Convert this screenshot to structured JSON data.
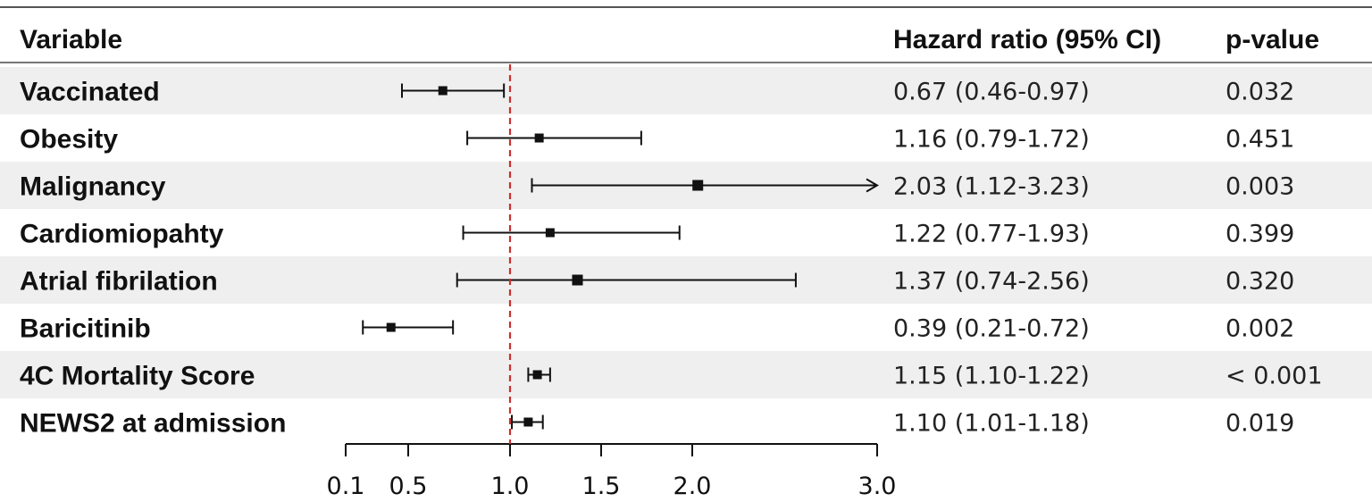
{
  "headers": {
    "variable": "Variable",
    "hazard_ratio": "Hazard ratio (95% CI)",
    "p_value": "p-value"
  },
  "colors": {
    "reference_line": "#c8312f",
    "row_band": "#efefef",
    "ink": "#111111"
  },
  "chart_data": {
    "type": "forest",
    "reference_value": 1.0,
    "xlim": [
      0.1,
      3.0
    ],
    "x_ticks": [
      0.1,
      0.5,
      1.0,
      1.5,
      2.0,
      3.0
    ],
    "x_tick_labels": [
      "0.1",
      "0.5",
      "1.0",
      "1.5",
      "2.0",
      "3.0"
    ],
    "rows": [
      {
        "variable": "Vaccinated",
        "hr": 0.67,
        "lower": 0.46,
        "upper": 0.97,
        "hr_text": "0.67 (0.46-0.97)",
        "p_value": "0.032"
      },
      {
        "variable": "Obesity",
        "hr": 1.16,
        "lower": 0.79,
        "upper": 1.72,
        "hr_text": "1.16 (0.79-1.72)",
        "p_value": "0.451"
      },
      {
        "variable": "Malignancy",
        "hr": 2.03,
        "lower": 1.12,
        "upper": 3.23,
        "hr_text": "2.03 (1.12-3.23)",
        "p_value": "0.003",
        "clipped_upper": true
      },
      {
        "variable": "Cardiomiopahty",
        "hr": 1.22,
        "lower": 0.77,
        "upper": 1.93,
        "hr_text": "1.22 (0.77-1.93)",
        "p_value": "0.399"
      },
      {
        "variable": "Atrial fibrilation",
        "hr": 1.37,
        "lower": 0.74,
        "upper": 2.56,
        "hr_text": "1.37 (0.74-2.56)",
        "p_value": "0.320"
      },
      {
        "variable": "Baricitinib",
        "hr": 0.39,
        "lower": 0.21,
        "upper": 0.72,
        "hr_text": "0.39 (0.21-0.72)",
        "p_value": "0.002"
      },
      {
        "variable": "4C Mortality Score",
        "hr": 1.15,
        "lower": 1.1,
        "upper": 1.22,
        "hr_text": "1.15 (1.10-1.22)",
        "p_value": "< 0.001"
      },
      {
        "variable": "NEWS2 at admission",
        "hr": 1.1,
        "lower": 1.01,
        "upper": 1.18,
        "hr_text": "1.10 (1.01-1.18)",
        "p_value": "0.019"
      }
    ]
  }
}
